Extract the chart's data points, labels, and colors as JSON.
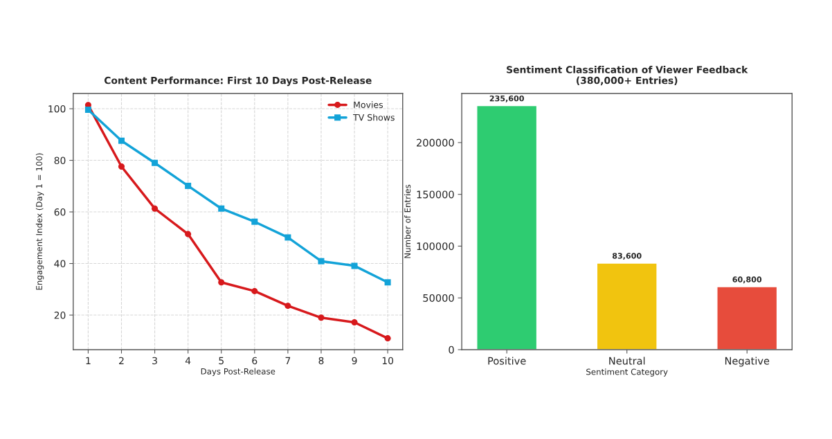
{
  "chart_data": [
    {
      "type": "line",
      "title": "Content Performance: First 10 Days Post-Release",
      "xlabel": "Days Post-Release",
      "ylabel": "Engagement Index (Day 1 = 100)",
      "x": [
        1,
        2,
        3,
        4,
        5,
        6,
        7,
        8,
        9,
        10
      ],
      "series": [
        {
          "name": "Movies",
          "color": "#d7191c",
          "marker": "circle",
          "values": [
            101.4,
            77.6,
            61.3,
            51.4,
            32.7,
            29.3,
            23.6,
            19.0,
            17.2,
            11.0
          ]
        },
        {
          "name": "TV Shows",
          "color": "#13a3d8",
          "marker": "square",
          "values": [
            99.6,
            87.6,
            79.0,
            70.1,
            61.3,
            56.2,
            50.1,
            40.9,
            39.1,
            32.7
          ]
        }
      ],
      "xlim": [
        0.55,
        10.45
      ],
      "xticks": [
        1,
        2,
        3,
        4,
        5,
        6,
        7,
        8,
        9,
        10
      ],
      "ylim": [
        6.6,
        105.9
      ],
      "yticks": [
        20,
        40,
        60,
        80,
        100
      ],
      "grid": true,
      "legend": "top right",
      "line_style": "solid"
    },
    {
      "type": "bar",
      "title": "Sentiment Classification of Viewer Feedback\n(380,000+ Entries)",
      "xlabel": "Sentiment Category",
      "ylabel": "Number of Entries",
      "categories": [
        "Positive",
        "Neutral",
        "Negative"
      ],
      "values": [
        235600,
        83600,
        60800
      ],
      "colors": [
        "#2ecc71",
        "#f1c40f",
        "#e74c3c"
      ],
      "value_labels": [
        "235,600",
        "83,600",
        "60,800"
      ],
      "ylim": [
        0,
        247380
      ],
      "yticks": [
        0,
        50000,
        100000,
        150000,
        200000
      ],
      "grid": false
    }
  ]
}
